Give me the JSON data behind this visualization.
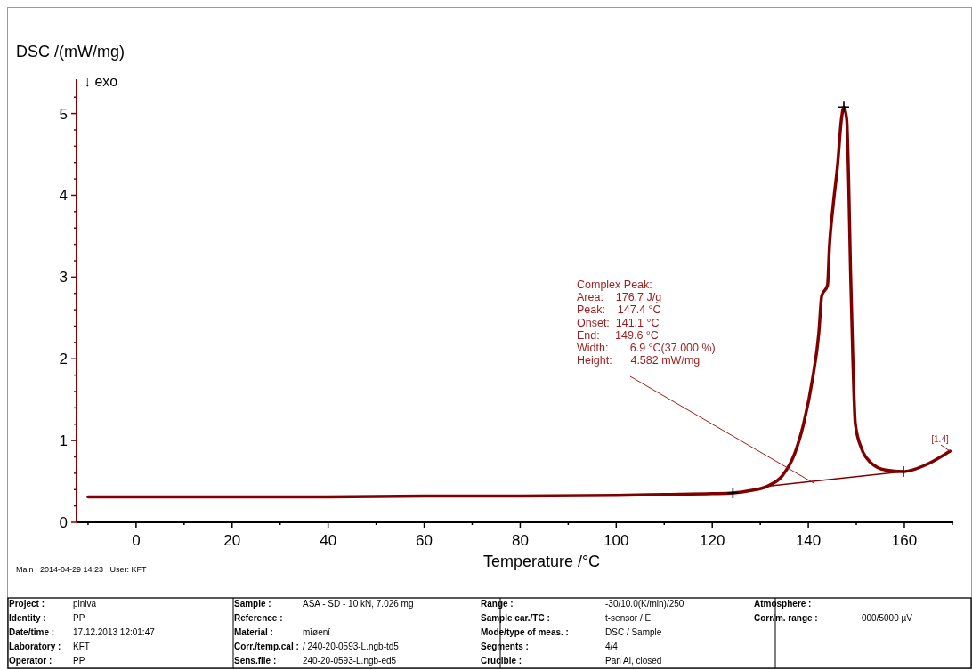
{
  "chart_data": {
    "type": "line",
    "xlabel": "Temperature /°C",
    "ylabel": "DSC /(mW/mg)",
    "xlim": [
      -12.4,
      170.2
    ],
    "ylim": [
      0,
      5.42
    ],
    "xticks": [
      {
        "value": -10,
        "label": null
      },
      0,
      {
        "value": 10,
        "label": null
      },
      20,
      {
        "value": 30,
        "label": null
      },
      40,
      {
        "value": 50,
        "label": null
      },
      60,
      {
        "value": 70,
        "label": null
      },
      80,
      {
        "value": 90,
        "label": null
      },
      100,
      {
        "value": 110,
        "label": null
      },
      120,
      {
        "value": 130,
        "label": null
      },
      140,
      {
        "value": 150,
        "label": null
      },
      160,
      {
        "value": 170,
        "label": null
      }
    ],
    "yticks": [
      0,
      {
        "value": 0.2,
        "label": null
      },
      {
        "value": 0.4,
        "label": null
      },
      {
        "value": 0.6,
        "label": null
      },
      {
        "value": 0.8,
        "label": null
      },
      1,
      {
        "value": 1.2,
        "label": null
      },
      {
        "value": 1.4,
        "label": null
      },
      {
        "value": 1.6,
        "label": null
      },
      {
        "value": 1.8,
        "label": null
      },
      2,
      {
        "value": 2.2,
        "label": null
      },
      {
        "value": 2.4,
        "label": null
      },
      {
        "value": 2.6,
        "label": null
      },
      {
        "value": 2.8,
        "label": null
      },
      3,
      {
        "value": 3.2,
        "label": null
      },
      {
        "value": 3.4,
        "label": null
      },
      {
        "value": 3.6,
        "label": null
      },
      {
        "value": 3.8,
        "label": null
      },
      4,
      {
        "value": 4.2,
        "label": null
      },
      {
        "value": 4.4,
        "label": null
      },
      {
        "value": 4.6,
        "label": null
      },
      {
        "value": 4.8,
        "label": null
      },
      5,
      {
        "value": 5.2,
        "label": null
      }
    ],
    "grid": false,
    "series": [
      {
        "color": "#800000",
        "x": [
          -10,
          0,
          20,
          40,
          60,
          80,
          100,
          110,
          120,
          124.3,
          128,
          131.4,
          134.6,
          137.1,
          139,
          140.9,
          142.2,
          142.8,
          144,
          144.4,
          145.2,
          146.1,
          146.9,
          147.4,
          148,
          148.4,
          148.8,
          149.3,
          149.8,
          151.1,
          153,
          156.1,
          159.8,
          164.4,
          169.5
        ],
        "values": [
          0.31,
          0.31,
          0.31,
          0.31,
          0.32,
          0.32,
          0.33,
          0.34,
          0.35,
          0.36,
          0.39,
          0.44,
          0.57,
          0.83,
          1.2,
          1.76,
          2.32,
          2.77,
          2.9,
          3.37,
          3.89,
          4.37,
          4.93,
          5.08,
          4.93,
          4.19,
          3.07,
          1.95,
          1.2,
          0.9,
          0.73,
          0.64,
          0.62,
          0.7,
          0.87
        ]
      },
      {
        "color": "#800000",
        "x": [
          131.4,
          159.8
        ],
        "values": [
          0.44,
          0.62
        ]
      },
      {
        "type": "scatter",
        "color": "#000000",
        "marker": "cross",
        "x": [
          124.3,
          147.4,
          159.8
        ],
        "values": [
          0.36,
          5.08,
          0.62
        ]
      }
    ],
    "annotations": [
      "↓ exo",
      {
        "text": "Complex Peak:\nArea:    176.7 J/g\nPeak:    147.4 °C\nOnset:  141.1 °C\nEnd:     149.6 °C\nWidth:       6.9 °C(37.000 %)\nHeight:      4.582 mW/mg",
        "x": 141.1,
        "y": 0.48
      },
      {
        "text": "[1.4]",
        "x": 169.5,
        "y": 0.87
      },
      "Main   2014-04-29 14:23   User: KFT",
      "Project : plniva",
      "Identity : PP",
      "Date/time : 17.12.2013 12:01:47",
      "Laboratory : KFT",
      "Operator : PP",
      "Sample : ASA - SD - 10 kN, 7.026 mg",
      "Reference :",
      "Material : mìøení",
      "Corr./temp.cal :  / 240-20-0593-L.ngb-td5",
      "Sens.file : 240-20-0593-L.ngb-ed5",
      "Range : -30/10.0(K/min)/250",
      "Sample car./TC : t-sensor / E",
      "Mode/type of meas. : DSC / Sample",
      "Segments : 4/4",
      "Crucible : Pan Al, closed",
      "Atmosphere :",
      "Corr/m. range : 000/5000 µV"
    ]
  }
}
